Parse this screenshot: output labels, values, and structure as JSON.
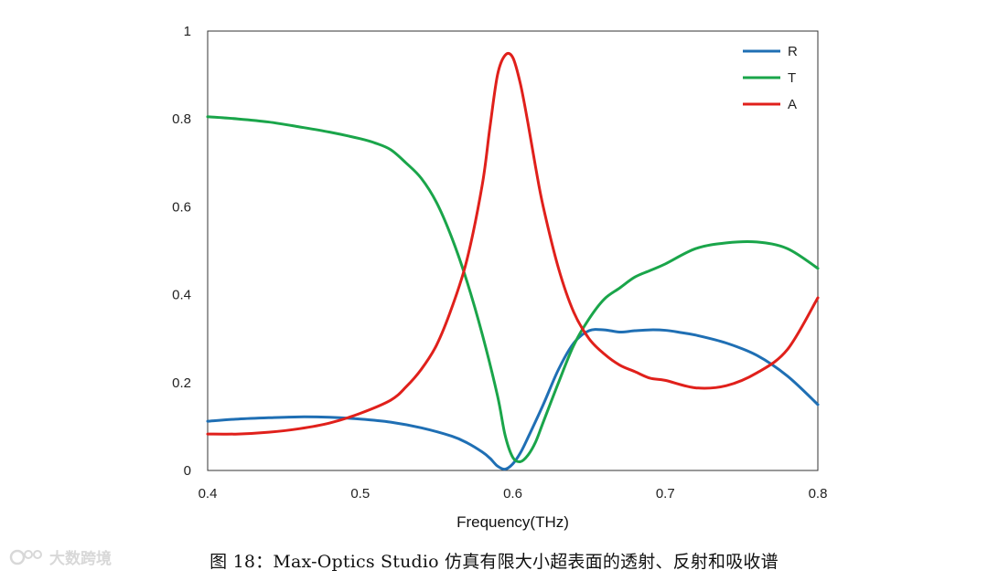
{
  "chart_data": {
    "type": "line",
    "xlabel": "Frequency(THz)",
    "ylabel": "",
    "xlim": [
      0.4,
      0.8
    ],
    "ylim": [
      0,
      1
    ],
    "x_ticks": [
      0.4,
      0.5,
      0.6,
      0.7,
      0.8
    ],
    "x_tick_labels": [
      "0.4",
      "0.5",
      "0.6",
      "0.7",
      "0.8"
    ],
    "y_ticks": [
      0,
      0.2,
      0.4,
      0.6,
      0.8,
      1
    ],
    "y_tick_labels": [
      "0",
      "0.2",
      "0.4",
      "0.6",
      "0.8",
      "1"
    ],
    "grid": false,
    "legend_position": "top-right",
    "series": [
      {
        "name": "R",
        "color": "#1f6fb4",
        "x": [
          0.4,
          0.42,
          0.44,
          0.46,
          0.48,
          0.5,
          0.52,
          0.54,
          0.56,
          0.57,
          0.58,
          0.585,
          0.59,
          0.595,
          0.6,
          0.605,
          0.61,
          0.62,
          0.63,
          0.64,
          0.65,
          0.66,
          0.67,
          0.68,
          0.69,
          0.7,
          0.71,
          0.72,
          0.74,
          0.76,
          0.78,
          0.8
        ],
        "values": [
          0.112,
          0.117,
          0.12,
          0.122,
          0.121,
          0.117,
          0.11,
          0.097,
          0.078,
          0.063,
          0.042,
          0.028,
          0.01,
          0.003,
          0.015,
          0.04,
          0.075,
          0.15,
          0.23,
          0.29,
          0.318,
          0.32,
          0.315,
          0.318,
          0.32,
          0.319,
          0.314,
          0.308,
          0.29,
          0.262,
          0.215,
          0.15
        ]
      },
      {
        "name": "T",
        "color": "#1aa54a",
        "x": [
          0.4,
          0.42,
          0.44,
          0.46,
          0.48,
          0.5,
          0.51,
          0.52,
          0.53,
          0.54,
          0.55,
          0.56,
          0.57,
          0.58,
          0.59,
          0.595,
          0.6,
          0.605,
          0.61,
          0.615,
          0.62,
          0.63,
          0.64,
          0.65,
          0.66,
          0.67,
          0.68,
          0.69,
          0.7,
          0.72,
          0.74,
          0.76,
          0.78,
          0.8
        ],
        "values": [
          0.805,
          0.8,
          0.793,
          0.782,
          0.77,
          0.755,
          0.745,
          0.73,
          0.7,
          0.665,
          0.61,
          0.53,
          0.43,
          0.31,
          0.17,
          0.08,
          0.03,
          0.02,
          0.035,
          0.065,
          0.11,
          0.2,
          0.285,
          0.345,
          0.39,
          0.415,
          0.44,
          0.455,
          0.47,
          0.505,
          0.518,
          0.52,
          0.505,
          0.46
        ]
      },
      {
        "name": "A",
        "color": "#e0201b",
        "x": [
          0.4,
          0.42,
          0.44,
          0.46,
          0.48,
          0.5,
          0.52,
          0.53,
          0.54,
          0.55,
          0.56,
          0.57,
          0.58,
          0.585,
          0.59,
          0.595,
          0.6,
          0.605,
          0.61,
          0.615,
          0.62,
          0.63,
          0.64,
          0.65,
          0.66,
          0.67,
          0.68,
          0.69,
          0.7,
          0.72,
          0.74,
          0.76,
          0.78,
          0.8
        ],
        "values": [
          0.083,
          0.083,
          0.087,
          0.095,
          0.108,
          0.13,
          0.16,
          0.19,
          0.23,
          0.285,
          0.37,
          0.48,
          0.65,
          0.78,
          0.9,
          0.945,
          0.94,
          0.88,
          0.79,
          0.69,
          0.6,
          0.46,
          0.36,
          0.3,
          0.265,
          0.24,
          0.225,
          0.21,
          0.205,
          0.188,
          0.193,
          0.222,
          0.275,
          0.393
        ]
      }
    ]
  },
  "caption": "图 18：Max-Optics Studio 仿真有限大小超表面的透射、反射和吸收谱",
  "watermark": "大数跨境"
}
